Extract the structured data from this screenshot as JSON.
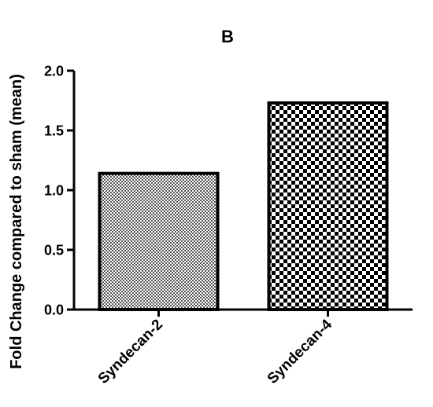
{
  "chart_data": {
    "type": "bar",
    "title": "B",
    "xlabel": "",
    "ylabel": "Fold Change compared to sham (mean)",
    "categories": [
      "Syndecan-2",
      "Syndecan-4"
    ],
    "values": [
      1.14,
      1.73
    ],
    "ylim": [
      0,
      2.0
    ],
    "yticks": [
      0.0,
      0.5,
      1.0,
      1.5,
      2.0
    ],
    "ytick_labels": [
      "0.0",
      "0.5",
      "1.0",
      "1.5",
      "2.0"
    ],
    "grid": false,
    "legend": "none",
    "bar_patterns": [
      "fine-checker",
      "coarse-checker"
    ],
    "colors": {
      "ink": "#000000",
      "background": "#ffffff",
      "bar_light": "#888888"
    }
  }
}
